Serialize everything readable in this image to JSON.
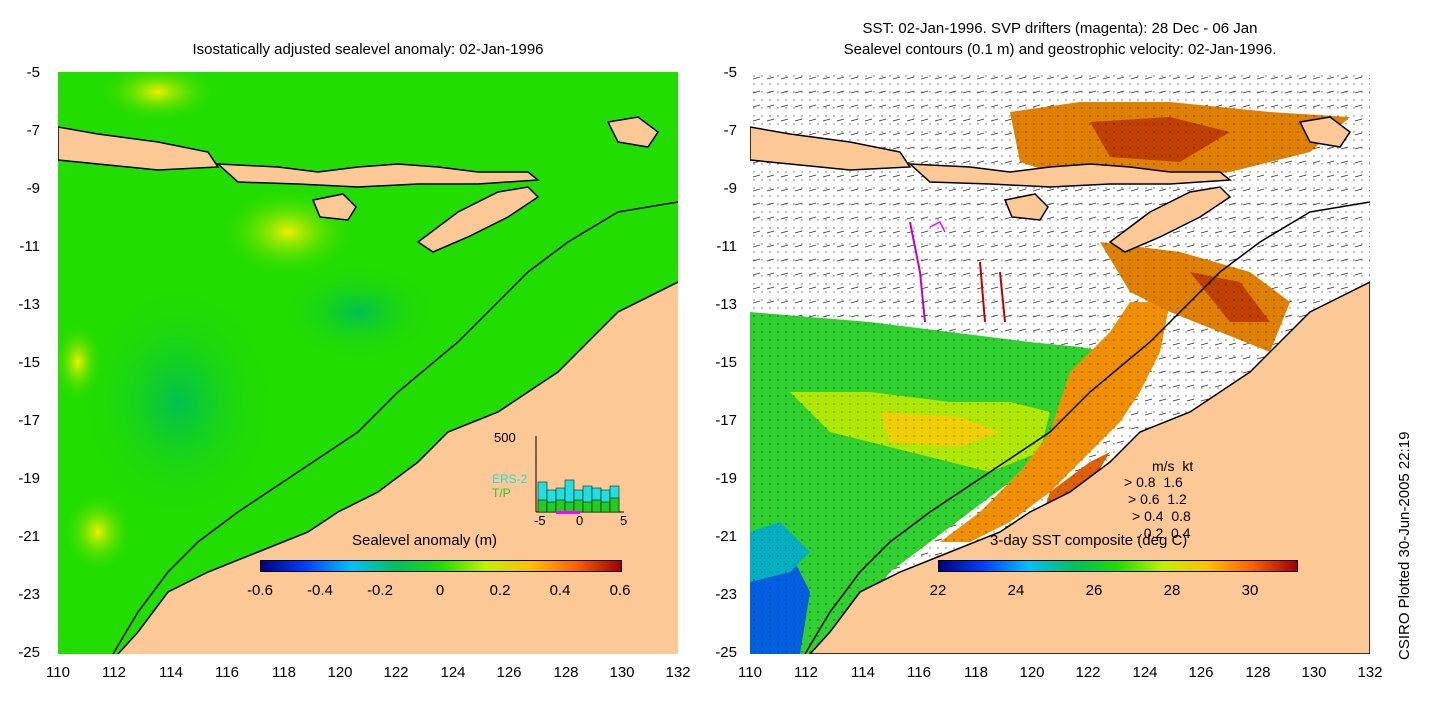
{
  "left_panel": {
    "title": "Isostatically adjusted sealevel anomaly: 02-Jan-1996",
    "y_ticks": [
      "-5",
      "-7",
      "-9",
      "-11",
      "-13",
      "-15",
      "-17",
      "-19",
      "-21",
      "-23",
      "-25"
    ],
    "x_ticks": [
      "110",
      "112",
      "114",
      "116",
      "118",
      "120",
      "122",
      "124",
      "126",
      "128",
      "130",
      "132"
    ],
    "colorbar": {
      "label": "Sealevel anomaly (m)",
      "ticks": [
        "-0.6",
        "-0.4",
        "-0.2",
        "0",
        "0.2",
        "0.4",
        "0.6"
      ],
      "range": [
        -0.6,
        0.6
      ]
    },
    "inset_histogram": {
      "y_max_label": "500",
      "series": [
        "ERS-2",
        "T/P"
      ],
      "x_ticks": [
        "-5",
        "0",
        "5"
      ],
      "colors": {
        "ERS-2": "#22dede",
        "T/P": "#22cc22",
        "marker": "#ff00ff"
      }
    }
  },
  "right_panel": {
    "title_line1": "SST: 02-Jan-1996. SVP drifters (magenta): 28 Dec - 06 Jan",
    "title_line2": "Sealevel contours (0.1 m) and geostrophic velocity: 02-Jan-1996.",
    "y_ticks": [
      "-5",
      "-7",
      "-9",
      "-11",
      "-13",
      "-15",
      "-17",
      "-19",
      "-21",
      "-23",
      "-25"
    ],
    "x_ticks": [
      "110",
      "112",
      "114",
      "116",
      "118",
      "120",
      "122",
      "124",
      "126",
      "128",
      "130",
      "132"
    ],
    "colorbar": {
      "label": "3-day SST composite (deg C)",
      "ticks": [
        "22",
        "24",
        "26",
        "28",
        "30"
      ],
      "range": [
        22,
        31.5
      ]
    },
    "velocity_legend": {
      "header": "m/s  kt",
      "rows": [
        "0.8  1.6",
        "0.6  1.2",
        "0.4  0.8",
        "0.2  0.4"
      ]
    }
  },
  "side_note": "CSIRO Plotted 30-Jun-2005 22:19",
  "colors": {
    "land": "#fcc896",
    "ocean_green": "#22dd00",
    "coast": "#000000"
  }
}
